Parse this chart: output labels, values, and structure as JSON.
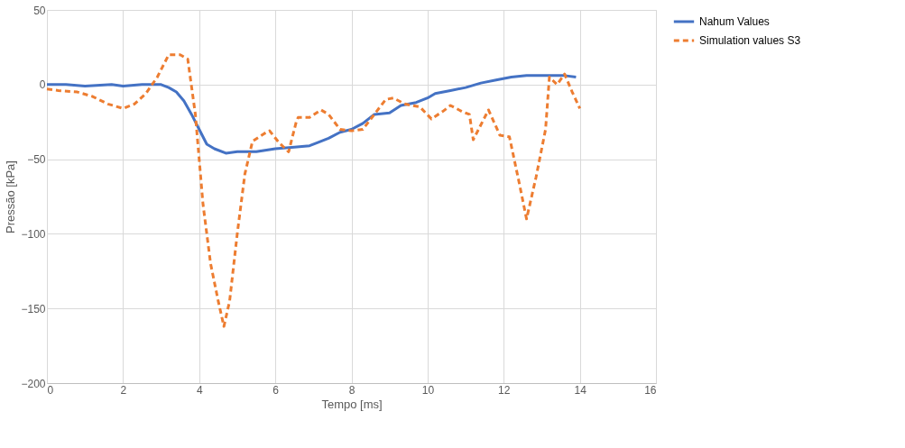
{
  "chart_data": {
    "type": "line",
    "xlabel": "Tempo [ms]",
    "ylabel": "Pressão [kPa]",
    "xlim": [
      0,
      16
    ],
    "xticks": [
      0,
      2,
      4,
      6,
      8,
      10,
      12,
      14,
      16
    ],
    "ylim": [
      -200,
      50
    ],
    "yticks": [
      -200,
      -150,
      -100,
      -50,
      0,
      50
    ],
    "grid": true,
    "legend": "right",
    "series": [
      {
        "name": "Nahum Values",
        "color": "#4472c4",
        "line_style": "solid",
        "x": [
          0,
          0.5,
          1,
          1.7,
          2,
          2.5,
          3,
          3.2,
          3.4,
          3.6,
          3.8,
          4.0,
          4.2,
          4.4,
          4.7,
          5,
          5.5,
          6,
          6.5,
          6.9,
          7.1,
          7.4,
          7.7,
          8,
          8.3,
          8.6,
          9.0,
          9.3,
          9.7,
          10,
          10.2,
          10.6,
          11,
          11.4,
          11.8,
          12.2,
          12.6,
          13,
          13.6,
          13.9
        ],
        "values": [
          0,
          0,
          -1,
          0,
          -1,
          0,
          0,
          -2,
          -5,
          -11,
          -20,
          -30,
          -40,
          -43,
          -46,
          -45,
          -45,
          -43,
          -42,
          -41,
          -39,
          -36,
          -32,
          -30,
          -26,
          -20,
          -19,
          -14,
          -12,
          -9,
          -6,
          -4,
          -2,
          1,
          3,
          5,
          6,
          6,
          6,
          5
        ]
      },
      {
        "name": "Simulation values S3",
        "color": "#ed7d31",
        "line_style": "dashed",
        "x": [
          0,
          0.3,
          0.8,
          1.2,
          1.6,
          2,
          2.3,
          2.6,
          2.9,
          3.2,
          3.5,
          3.7,
          3.9,
          4.1,
          4.3,
          4.5,
          4.65,
          4.8,
          5.0,
          5.2,
          5.4,
          5.7,
          5.85,
          6.1,
          6.35,
          6.55,
          6.6,
          6.9,
          7.2,
          7.4,
          7.7,
          8.0,
          8.3,
          8.6,
          8.9,
          9.1,
          9.4,
          9.8,
          10.1,
          10.4,
          10.6,
          10.9,
          11.1,
          11.2,
          11.6,
          11.9,
          12.15,
          12.4,
          12.6,
          12.85,
          13.1,
          13.2,
          13.4,
          13.6,
          13.8,
          14.0
        ],
        "values": [
          -3,
          -4,
          -5,
          -8,
          -13,
          -16,
          -13,
          -6,
          5,
          20,
          20,
          17,
          -20,
          -80,
          -120,
          -145,
          -162,
          -145,
          -100,
          -60,
          -38,
          -33,
          -31,
          -39,
          -45,
          -25,
          -22,
          -22,
          -17,
          -20,
          -30,
          -31,
          -30,
          -20,
          -10,
          -9,
          -13,
          -15,
          -23,
          -18,
          -14,
          -18,
          -20,
          -37,
          -17,
          -34,
          -35,
          -65,
          -90,
          -62,
          -30,
          5,
          0,
          7,
          -5,
          -16
        ]
      }
    ]
  }
}
